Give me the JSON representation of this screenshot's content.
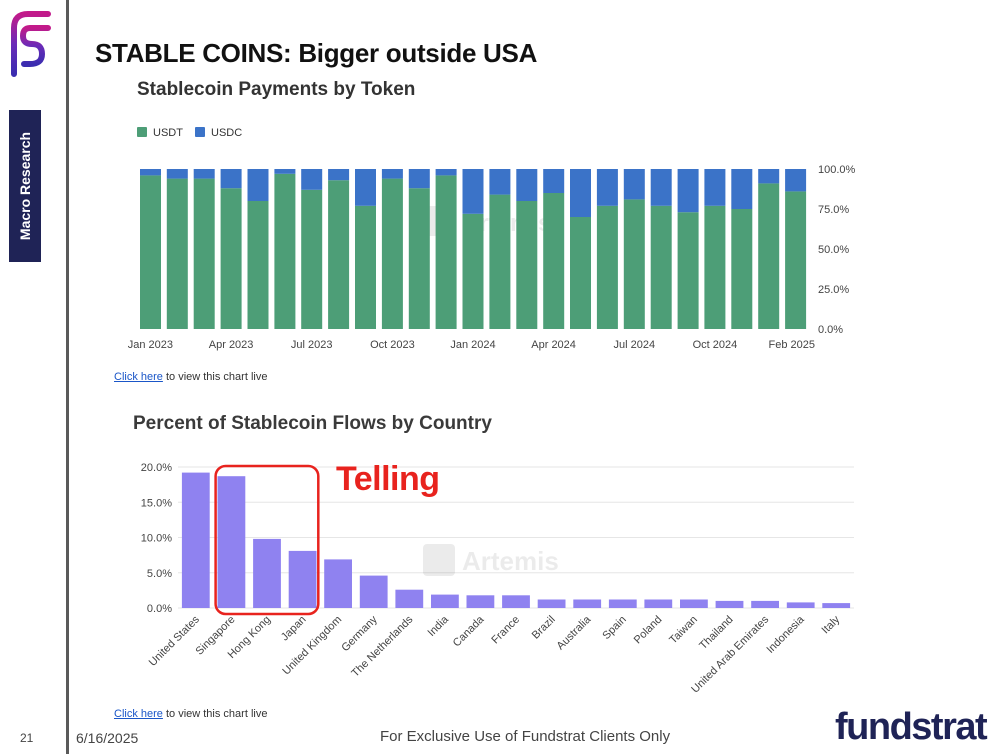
{
  "slide": {
    "title": "STABLE COINS: Bigger outside USA",
    "side_label": "Macro Research",
    "page_number": "21",
    "date": "6/16/2025",
    "footer_note": "For Exclusive Use of Fundstrat Clients Only",
    "brand": "fundstrat",
    "annotation": "Telling",
    "watermark": "Artemis"
  },
  "colors": {
    "usdt": "#4d9e77",
    "usdc": "#3b73c8",
    "country_bar": "#8f82f0",
    "annotation": "#e8231e",
    "badge": "#1f2356"
  },
  "chart_data": [
    {
      "type": "bar",
      "stacked": true,
      "title": "Stablecoin Payments by Token",
      "link": {
        "text": "Click here",
        "rest": " to view this chart live"
      },
      "legend_position": "top-left",
      "series": [
        {
          "name": "USDT",
          "values": [
            96,
            94,
            94,
            88,
            80,
            97,
            87,
            93,
            77,
            94,
            88,
            96,
            72,
            84,
            80,
            85,
            70,
            77,
            81,
            77,
            73,
            77,
            75,
            91,
            86
          ]
        },
        {
          "name": "USDC",
          "values": [
            4,
            6,
            6,
            12,
            20,
            3,
            13,
            7,
            23,
            6,
            12,
            4,
            28,
            16,
            20,
            15,
            30,
            23,
            19,
            23,
            27,
            23,
            25,
            9,
            14
          ]
        }
      ],
      "x_labels": [
        "Jan 2023",
        "Apr 2023",
        "Jul 2023",
        "Oct 2023",
        "Jan 2024",
        "Apr 2024",
        "Jul 2024",
        "Oct 2024",
        "Feb 2025"
      ],
      "x_label_index": [
        0,
        3,
        6,
        9,
        12,
        15,
        18,
        21,
        25
      ],
      "y_ticks": [
        "0.0%",
        "25.0%",
        "50.0%",
        "75.0%",
        "100.0%"
      ],
      "ylim": [
        0,
        100
      ]
    },
    {
      "type": "bar",
      "title": "Percent of Stablecoin Flows by Country",
      "link": {
        "text": "Click here",
        "rest": " to view this chart live"
      },
      "categories": [
        "United States",
        "Singapore",
        "Hong Kong",
        "Japan",
        "United Kingdom",
        "Germany",
        "The Netherlands",
        "India",
        "Canada",
        "France",
        "Brazil",
        "Australia",
        "Spain",
        "Poland",
        "Taiwan",
        "Thailand",
        "United Arab Emirates",
        "Indonesia",
        "Italy"
      ],
      "values": [
        19.2,
        18.7,
        9.8,
        8.1,
        6.9,
        4.6,
        2.6,
        1.9,
        1.8,
        1.8,
        1.2,
        1.2,
        1.2,
        1.2,
        1.2,
        1.0,
        1.0,
        0.8,
        0.7
      ],
      "y_ticks": [
        "0.0%",
        "5.0%",
        "10.0%",
        "15.0%",
        "20.0%"
      ],
      "ylim": [
        0,
        20
      ],
      "highlight": [
        "Singapore",
        "Hong Kong",
        "Japan"
      ]
    }
  ]
}
